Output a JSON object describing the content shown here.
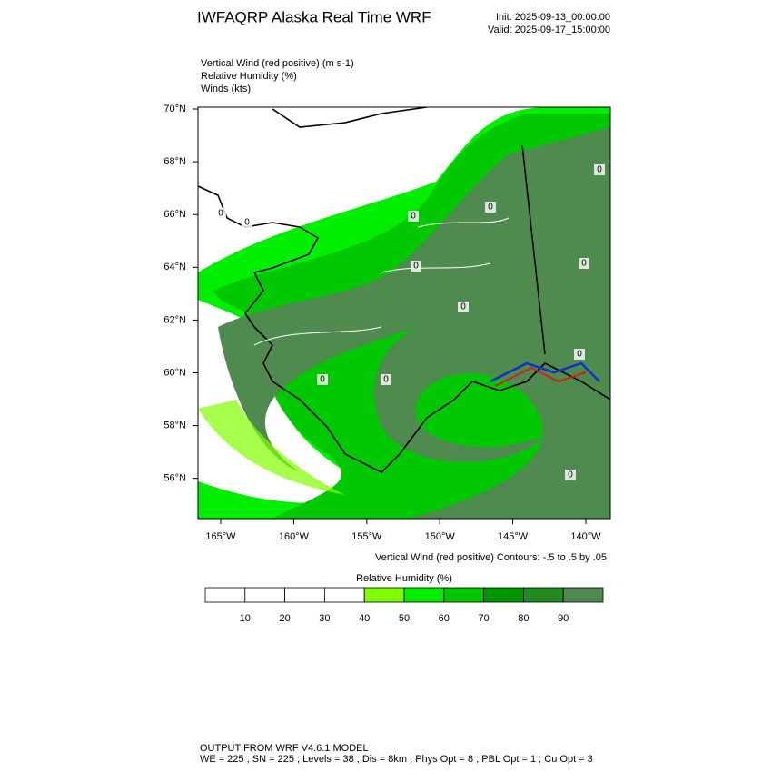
{
  "header": {
    "title": "IWFAQRP Alaska Real Time WRF",
    "init": "Init: 2025-09-13_00:00:00",
    "valid": "Valid: 2025-09-17_15:00:00"
  },
  "fields": [
    "Vertical Wind (red positive)   (m s-1)",
    "Relative Humidity   (%)",
    "Winds   (kts)"
  ],
  "map": {
    "lat_labels": [
      "70°N",
      "68°N",
      "66°N",
      "64°N",
      "62°N",
      "60°N",
      "58°N",
      "56°N"
    ],
    "lon_labels": [
      "165°W",
      "160°W",
      "155°W",
      "150°W",
      "145°W",
      "140°W"
    ],
    "contour_label": "0"
  },
  "contour_note": "Vertical Wind (red positive) Contours: -.5 to .5 by .05",
  "colorbar": {
    "title": "Relative Humidity  (%)",
    "ticks": [
      10,
      20,
      30,
      40,
      50,
      60,
      70,
      80,
      90
    ],
    "colors": [
      "#ffffff",
      "#ffffff",
      "#ffffff",
      "#ffffff",
      "#80ff00",
      "#00ee00",
      "#00c800",
      "#009600",
      "#228b22",
      "#4f8a4f"
    ]
  },
  "footer": [
    "OUTPUT FROM WRF V4.6.1 MODEL",
    "WE = 225 ; SN = 225 ; Levels = 38 ; Dis = 8km ; Phys Opt = 8 ; PBL Opt = 1 ; Cu Opt = 3"
  ]
}
